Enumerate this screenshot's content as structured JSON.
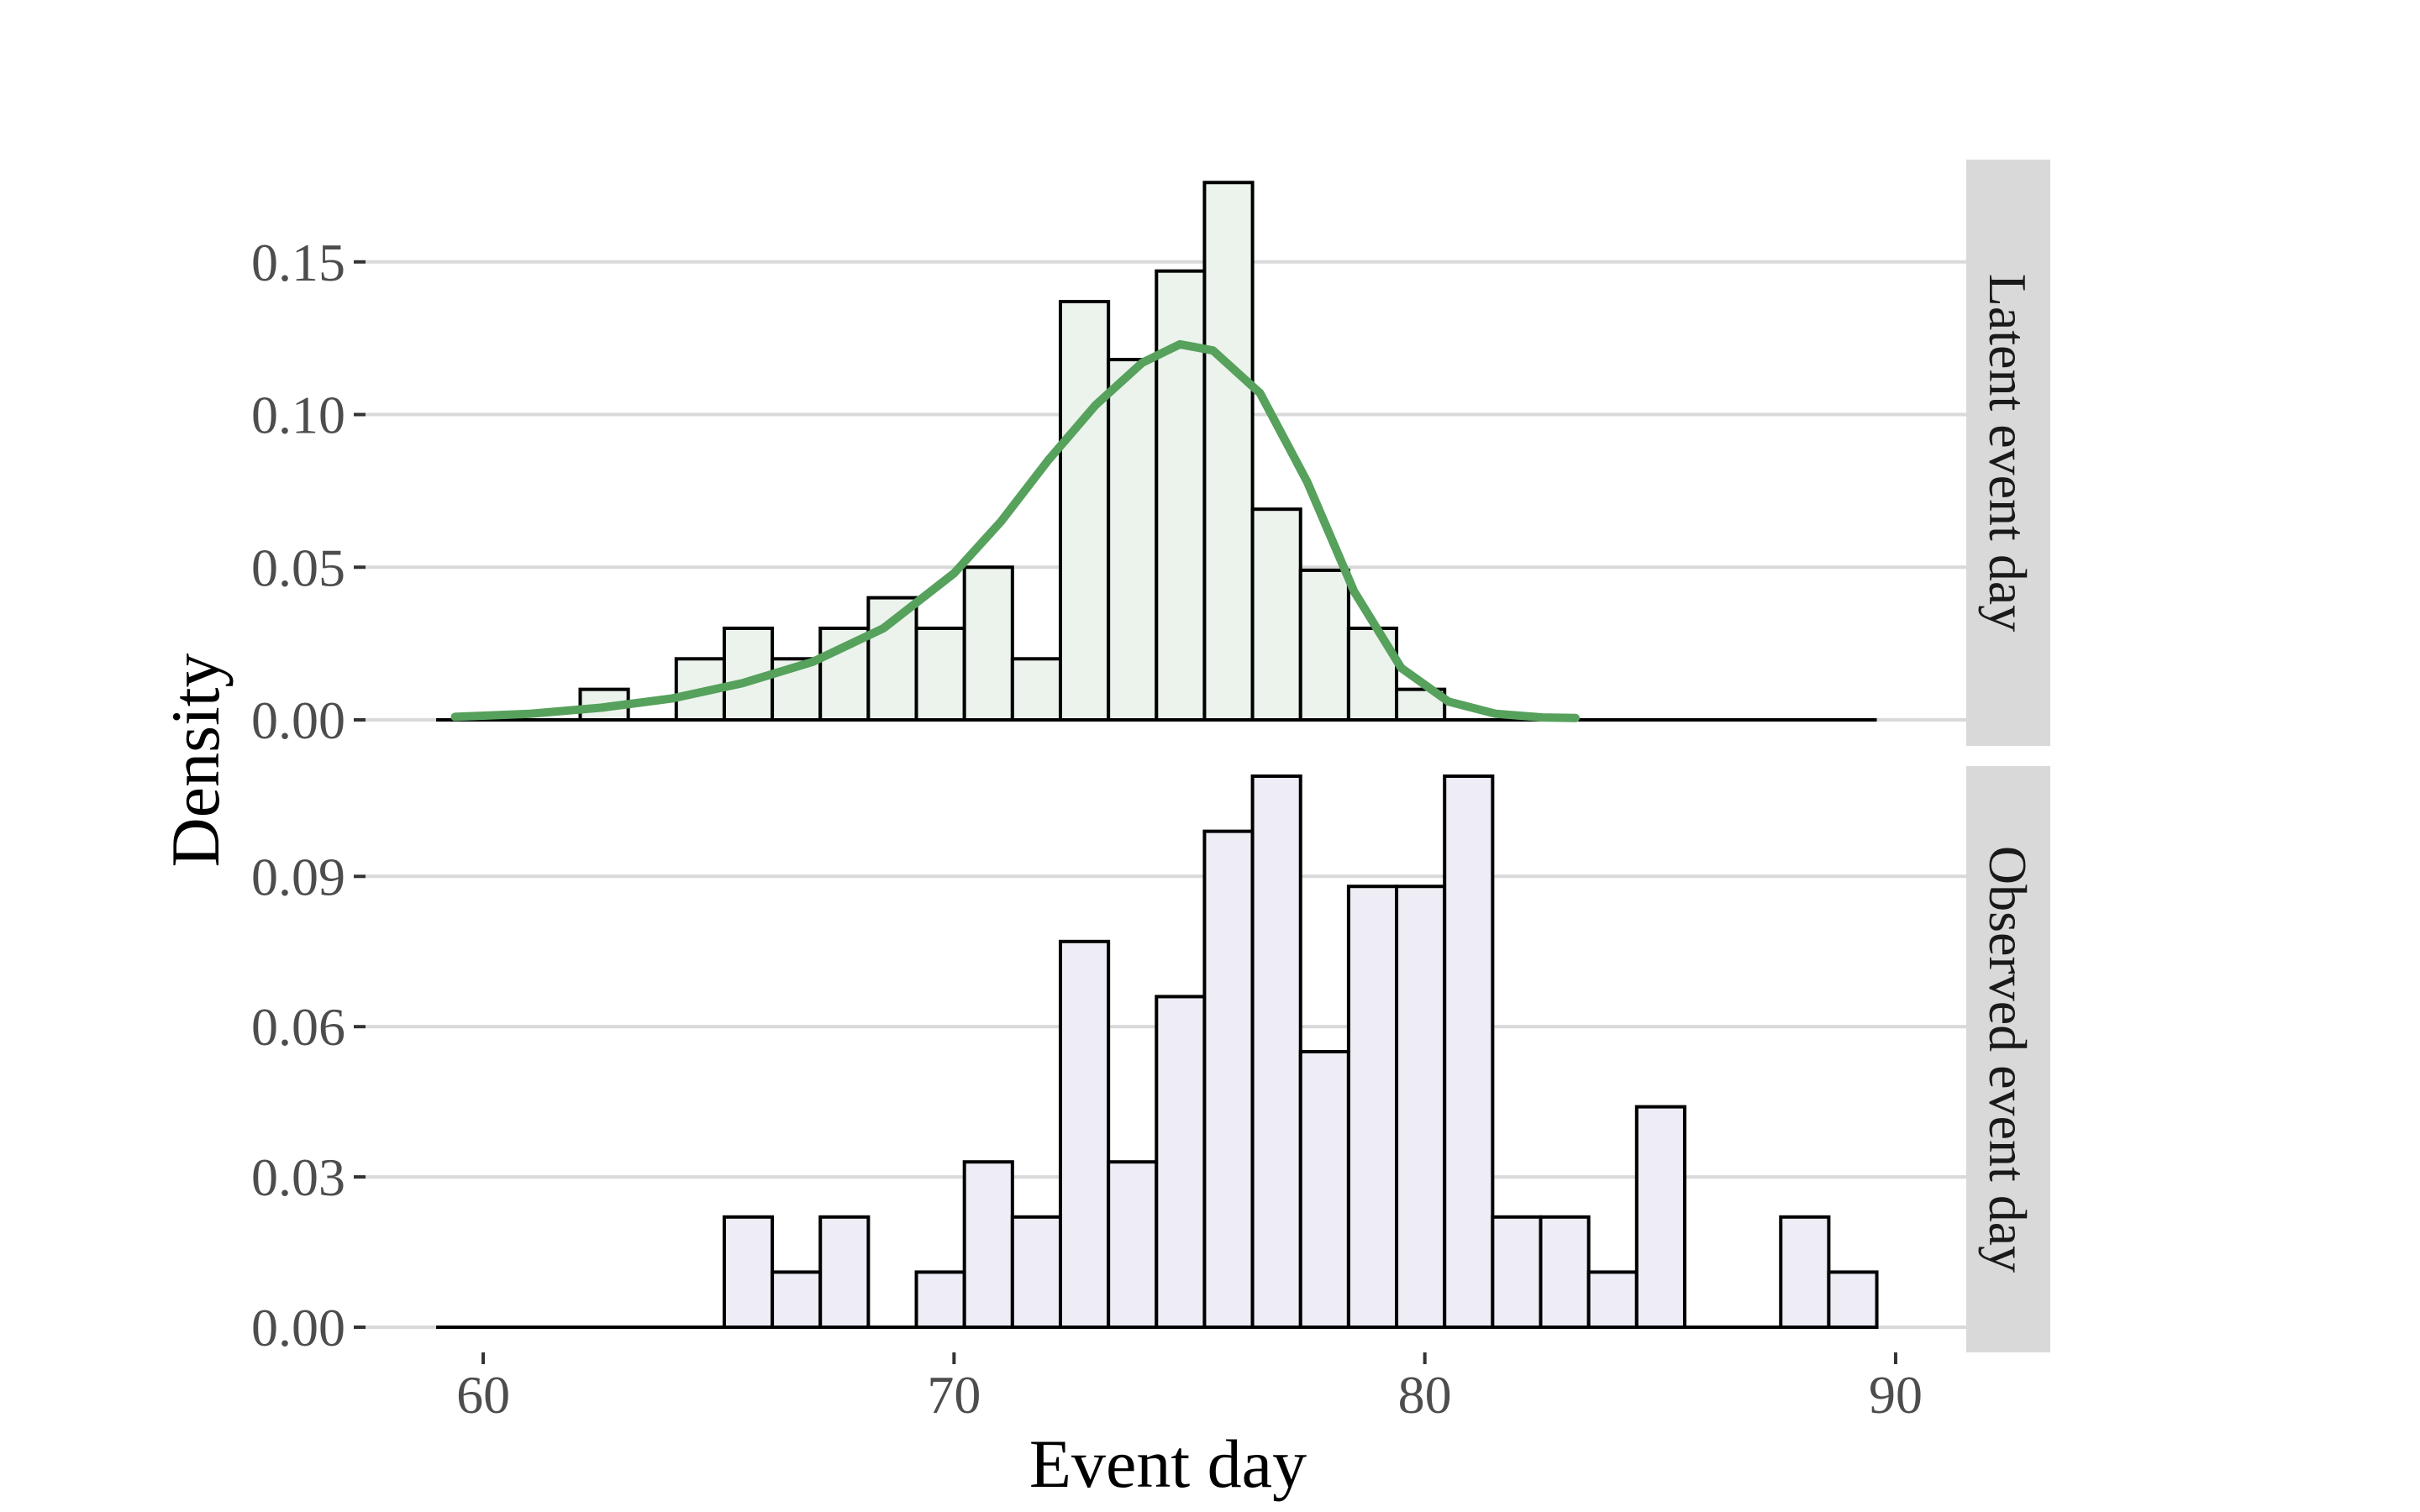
{
  "chart_data": {
    "type": "bar",
    "xlabel": "Event day",
    "ylabel": "Density",
    "xlim": [
      57.5,
      91.5
    ],
    "x_ticks": [
      "60",
      "70",
      "80",
      "90"
    ],
    "x_tick_values": [
      60,
      70,
      80,
      90
    ],
    "bin_width": 1.02,
    "bin_start": 59.0,
    "colors": {
      "latent_fill": "#ebf3ec",
      "observed_fill": "#eeecf4",
      "curve": "#56a15c",
      "strip": "#d9d9d9"
    },
    "panels": [
      {
        "strip_label": "Latent event day",
        "ylim": [
          0,
          0.178
        ],
        "y_ticks": [
          "0.00",
          "0.05",
          "0.10",
          "0.15"
        ],
        "y_tick_values": [
          0,
          0.05,
          0.1,
          0.15
        ],
        "bars": [
          0,
          0,
          0,
          0.01,
          0,
          0.02,
          0.03,
          0.02,
          0.03,
          0.04,
          0.03,
          0.05,
          0.02,
          0.137,
          0.118,
          0.147,
          0.176,
          0.069,
          0.049,
          0.03,
          0.01,
          0,
          0,
          0,
          0,
          0,
          0,
          0,
          0,
          0
        ],
        "density_curve": {
          "x": [
            59.4,
            61,
            62.5,
            64,
            65.5,
            67,
            68.5,
            70,
            71,
            72,
            73,
            74,
            74.8,
            75.5,
            76.5,
            77.5,
            78.5,
            79.5,
            80.5,
            81.5,
            82.5,
            83.2
          ],
          "y": [
            0.001,
            0.002,
            0.004,
            0.007,
            0.012,
            0.019,
            0.03,
            0.048,
            0.065,
            0.085,
            0.103,
            0.117,
            0.123,
            0.121,
            0.107,
            0.078,
            0.042,
            0.017,
            0.006,
            0.002,
            0.0008,
            0.0006
          ]
        }
      },
      {
        "strip_label": "Observed event day",
        "ylim": [
          0,
          0.109
        ],
        "y_ticks": [
          "0.00",
          "0.03",
          "0.06",
          "0.09"
        ],
        "y_tick_values": [
          0,
          0.03,
          0.06,
          0.09
        ],
        "bars": [
          0,
          0,
          0,
          0,
          0,
          0,
          0.022,
          0.011,
          0.022,
          0,
          0.011,
          0.033,
          0.022,
          0.077,
          0.033,
          0.066,
          0.099,
          0.11,
          0.055,
          0.088,
          0.088,
          0.11,
          0.022,
          0.022,
          0.011,
          0.044,
          0,
          0,
          0.022,
          0.011
        ]
      }
    ]
  }
}
